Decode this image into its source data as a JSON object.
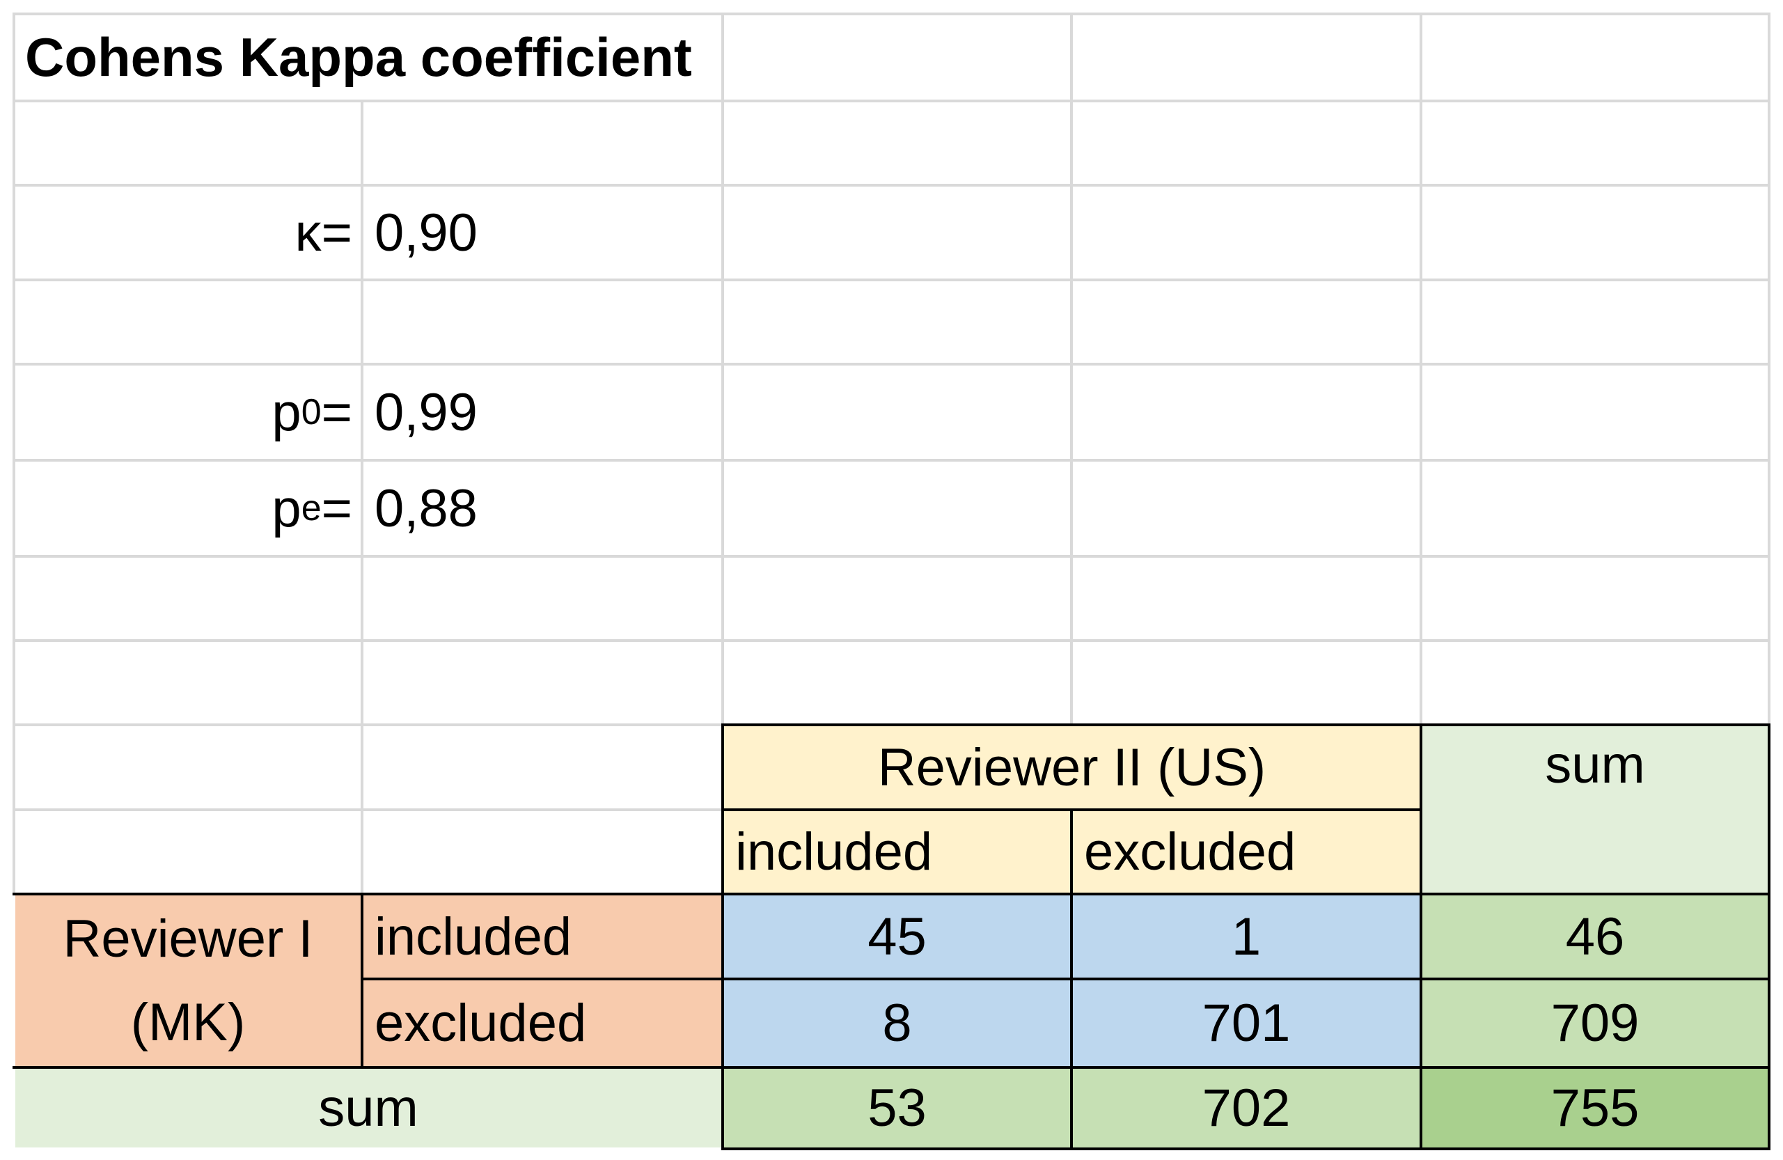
{
  "title": "Cohens Kappa coefficient",
  "stats": {
    "kappa_label": "κ=",
    "kappa_value": "0,90",
    "p0_label_base": "p",
    "p0_label_sub": "0",
    "p0_label_eq": "=",
    "p0_value": "0,99",
    "pe_label_base": "p",
    "pe_label_sub": "e",
    "pe_label_eq": "=",
    "pe_value": "0,88"
  },
  "table": {
    "reviewer2_header": "Reviewer II (US)",
    "sum_header": "sum",
    "reviewer2_included": "included",
    "reviewer2_excluded": "excluded",
    "reviewer1_line1": "Reviewer I",
    "reviewer1_line2": "(MK)",
    "reviewer1_included": "included",
    "reviewer1_excluded": "excluded",
    "sum_row_label": "sum",
    "cells": {
      "inc_inc": "45",
      "inc_exc": "1",
      "inc_sum": "46",
      "exc_inc": "8",
      "exc_exc": "701",
      "exc_sum": "709",
      "sum_inc": "53",
      "sum_exc": "702",
      "sum_total": "755"
    }
  },
  "colors": {
    "reviewer1": "#f8cbad",
    "reviewer2": "#fff2cc",
    "counts": "#bdd7ee",
    "sum_header": "#e2efda",
    "sums": "#c6e0b4",
    "total": "#a9d08e"
  }
}
